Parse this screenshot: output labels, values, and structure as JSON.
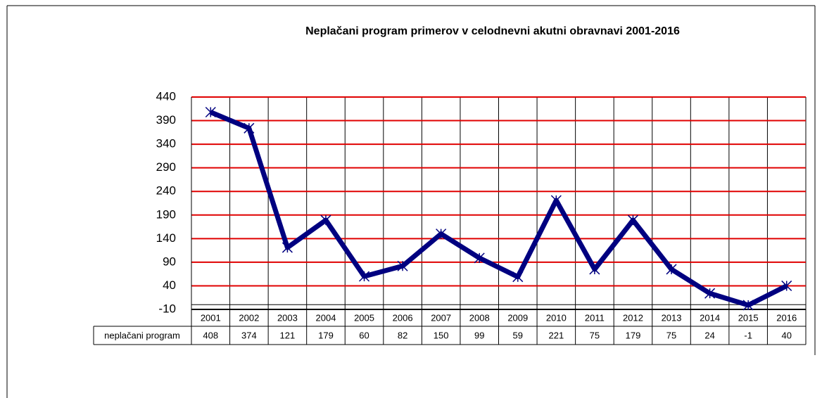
{
  "chart_data": {
    "type": "line",
    "title": "Neplačani program primerov v celodnevni akutni obravnavi 2001-2016",
    "categories": [
      "2001",
      "2002",
      "2003",
      "2004",
      "2005",
      "2006",
      "2007",
      "2008",
      "2009",
      "2010",
      "2011",
      "2012",
      "2013",
      "2014",
      "2015",
      "2016"
    ],
    "series": [
      {
        "name": "neplačani program",
        "color": "#000080",
        "values": [
          408,
          374,
          121,
          179,
          60,
          82,
          150,
          99,
          59,
          221,
          75,
          179,
          75,
          24,
          -1,
          40
        ]
      }
    ],
    "ylim": [
      -10,
      440
    ],
    "yticks": [
      -10,
      40,
      90,
      140,
      190,
      240,
      290,
      340,
      390,
      440
    ],
    "grid": true,
    "grid_color": "#e00000"
  }
}
